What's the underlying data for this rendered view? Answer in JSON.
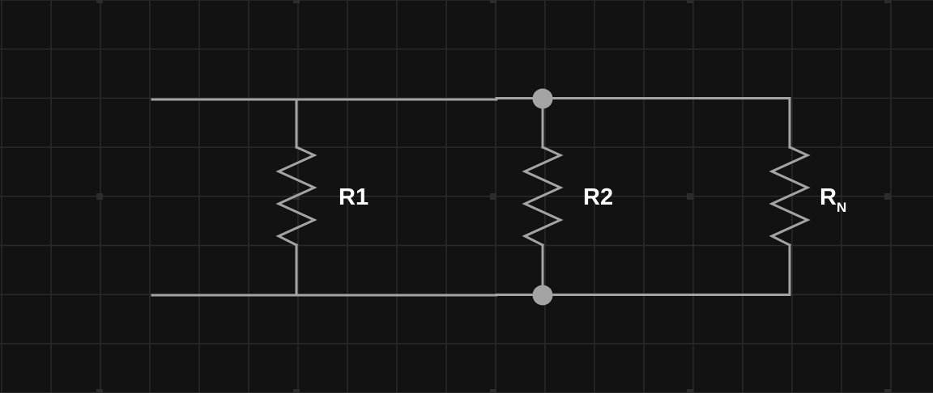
{
  "diagram": {
    "background_color": "#121212",
    "grid_color": "#2a2a2a",
    "wire_color": "#a4a4a4",
    "label_color": "#ffffff",
    "components": [
      {
        "id": "r1",
        "type": "resistor",
        "label": "R1",
        "subscript": ""
      },
      {
        "id": "r2",
        "type": "resistor",
        "label": "R2",
        "subscript": ""
      },
      {
        "id": "rn",
        "type": "resistor",
        "label": "R",
        "subscript": "N"
      }
    ],
    "junctions": [
      "top-node",
      "bottom-node"
    ]
  }
}
